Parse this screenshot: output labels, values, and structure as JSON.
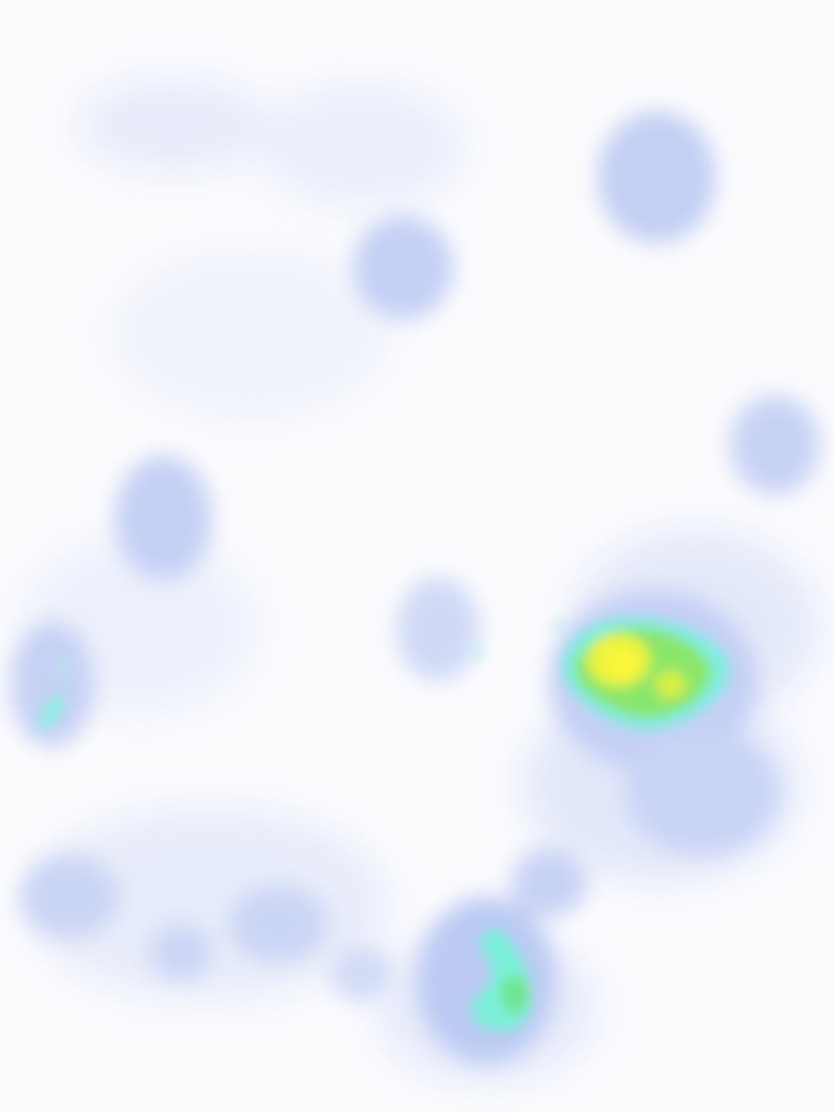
{
  "heatmap": {
    "colormap": [
      "#fbfbfe",
      "#c7d3f4",
      "#7ff0e0",
      "#86e86c",
      "#f6f73a"
    ],
    "background_color": "#fbfbfe",
    "scale": "no-labels"
  }
}
